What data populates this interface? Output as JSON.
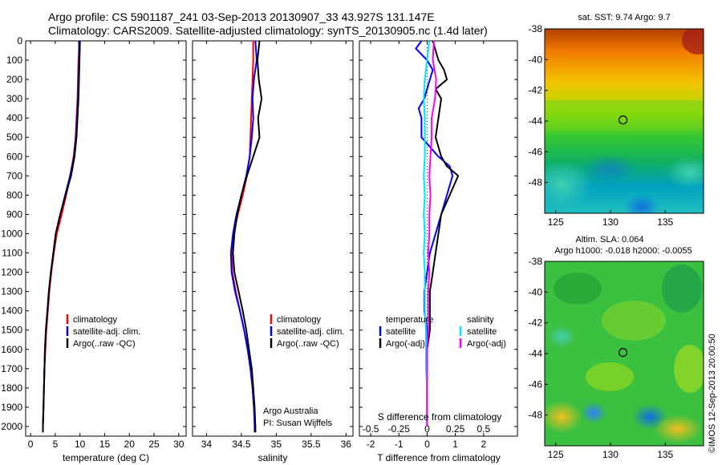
{
  "header": {
    "line1": "Argo profile: CS 5901187_241 03-Sep-2013 20130907_33 43.927S 131.147E",
    "line2": "Climatology: CARS2009. Satellite-adjusted climatology: synTS_20130905.nc (1.4d later)"
  },
  "side_label": "©IMOS 12-Sep-2013 20:00:50",
  "depth_ticks": [
    0,
    100,
    200,
    300,
    400,
    500,
    600,
    700,
    800,
    900,
    1000,
    1100,
    1200,
    1300,
    1400,
    1500,
    1600,
    1700,
    1800,
    1900,
    2000
  ],
  "colors": {
    "climatology": "#ff0000",
    "satellite": "#0000ff",
    "argo": "#000000",
    "satellite_s": "#00e5ff",
    "argo_s": "#ff00ff"
  },
  "chart_data": [
    {
      "type": "line",
      "panel": "temperature",
      "xlabel": "temperature (deg C)",
      "xlim": [
        -1,
        31.5
      ],
      "ylim": [
        2050,
        0
      ],
      "xticks": [
        0,
        5,
        10,
        15,
        20,
        25,
        30
      ],
      "legend": [
        "climatology",
        "satellite-adj. clim.",
        "Argo(..raw -QC)"
      ],
      "series": [
        {
          "name": "climatology",
          "depth": [
            0,
            100,
            200,
            300,
            400,
            500,
            600,
            700,
            800,
            900,
            1000,
            1100,
            1200,
            1300,
            1400,
            1500,
            1600,
            1700,
            1800,
            1900,
            2000,
            2030
          ],
          "values": [
            9.9,
            9.7,
            9.6,
            9.5,
            9.3,
            9.1,
            8.7,
            8.0,
            7.2,
            6.3,
            5.3,
            4.7,
            4.2,
            3.8,
            3.5,
            3.2,
            3.0,
            2.8,
            2.7,
            2.6,
            2.5,
            2.5
          ]
        },
        {
          "name": "satellite-adj. clim.",
          "depth": [
            0,
            100,
            200,
            300,
            400,
            500,
            600,
            700,
            800,
            900,
            1000,
            1100,
            1200,
            1300,
            1400,
            1500,
            1600,
            1700,
            1800,
            1900,
            2000,
            2030
          ],
          "values": [
            9.8,
            9.8,
            9.7,
            9.6,
            9.4,
            9.2,
            8.8,
            8.0,
            7.0,
            6.0,
            5.1,
            4.6,
            4.1,
            3.7,
            3.4,
            3.1,
            2.9,
            2.8,
            2.7,
            2.6,
            2.5,
            2.5
          ]
        },
        {
          "name": "Argo(..raw -QC)",
          "depth": [
            0,
            100,
            200,
            300,
            400,
            500,
            600,
            700,
            800,
            900,
            1000,
            1100,
            1200,
            1300,
            1400,
            1500,
            1600,
            1700,
            1800,
            1900,
            2000,
            2030
          ],
          "values": [
            10.0,
            9.9,
            9.8,
            9.7,
            9.5,
            9.3,
            8.9,
            8.2,
            7.1,
            6.0,
            5.1,
            4.6,
            4.1,
            3.7,
            3.4,
            3.1,
            2.9,
            2.8,
            2.7,
            2.6,
            2.5,
            2.5
          ]
        }
      ]
    },
    {
      "type": "line",
      "panel": "salinity",
      "xlabel": "salinity",
      "xlim": [
        33.8,
        36.1
      ],
      "ylim": [
        2050,
        0
      ],
      "xticks": [
        34,
        34.5,
        35,
        35.5,
        36
      ],
      "legend": [
        "climatology",
        "satellite-adj. clim.",
        "Argo(..raw -QC)"
      ],
      "annotation": [
        "Argo Australia",
        "PI: Susan Wijffels"
      ],
      "series": [
        {
          "name": "climatology",
          "depth": [
            0,
            100,
            200,
            300,
            400,
            500,
            600,
            700,
            800,
            900,
            1000,
            1100,
            1200,
            1300,
            1400,
            1500,
            1600,
            1700,
            1800,
            1900,
            2000,
            2030
          ],
          "values": [
            34.67,
            34.67,
            34.66,
            34.65,
            34.64,
            34.63,
            34.62,
            34.58,
            34.52,
            34.45,
            34.39,
            34.36,
            34.37,
            34.42,
            34.48,
            34.54,
            34.59,
            34.63,
            34.66,
            34.68,
            34.7,
            34.7
          ]
        },
        {
          "name": "satellite-adj. clim.",
          "depth": [
            0,
            100,
            200,
            300,
            400,
            500,
            600,
            700,
            800,
            900,
            1000,
            1100,
            1200,
            1300,
            1400,
            1500,
            1600,
            1700,
            1800,
            1900,
            2000,
            2030
          ],
          "values": [
            34.7,
            34.72,
            34.68,
            34.66,
            34.67,
            34.65,
            34.62,
            34.57,
            34.5,
            34.43,
            34.38,
            34.35,
            34.36,
            34.41,
            34.48,
            34.54,
            34.59,
            34.63,
            34.66,
            34.68,
            34.69,
            34.69
          ]
        },
        {
          "name": "Argo(..raw -QC)",
          "depth": [
            0,
            100,
            200,
            300,
            400,
            500,
            600,
            700,
            800,
            900,
            1000,
            1100,
            1200,
            1300,
            1400,
            1500,
            1600,
            1700,
            1800,
            1900,
            2000,
            2030
          ],
          "values": [
            34.76,
            34.73,
            34.75,
            34.79,
            34.74,
            34.76,
            34.67,
            34.58,
            34.5,
            34.44,
            34.4,
            34.38,
            34.4,
            34.46,
            34.52,
            34.57,
            34.61,
            34.65,
            34.67,
            34.69,
            34.7,
            34.7
          ]
        }
      ]
    },
    {
      "type": "line",
      "panel": "differences",
      "xlabel": "T difference from climatology",
      "xlabel_top": "S difference from climatology",
      "xlim": [
        -2.4,
        3.2
      ],
      "ylim": [
        2050,
        0
      ],
      "xticks": [
        -2,
        -1,
        0,
        1,
        2
      ],
      "xticks_top": [
        "-0.5",
        "-0.25",
        "0",
        "0.25",
        "0.5"
      ],
      "legend_left": [
        "temperature",
        "satellite",
        "Argo(-adj)"
      ],
      "legend_right": [
        "salinity",
        "satellite",
        "Argo(-adj)"
      ],
      "series": [
        {
          "name": "satellite",
          "variable": "temperature",
          "depth": [
            0,
            40,
            100,
            150,
            200,
            300,
            350,
            400,
            500,
            600,
            650,
            700,
            800,
            900,
            1000,
            1100,
            1200,
            1300,
            1400,
            1500,
            1600,
            1700,
            1800,
            1900,
            2000
          ],
          "values": [
            -0.2,
            -0.4,
            0.0,
            0.2,
            0.1,
            -0.1,
            -0.3,
            -0.2,
            -0.2,
            0.4,
            0.8,
            0.9,
            0.7,
            0.5,
            0.3,
            0.1,
            0.0,
            -0.1,
            -0.1,
            0.0,
            0.0,
            0.0,
            0.0,
            0.0,
            0.0
          ]
        },
        {
          "name": "Argo(-adj)",
          "variable": "temperature",
          "depth": [
            0,
            50,
            100,
            150,
            200,
            250,
            300,
            400,
            500,
            600,
            650,
            700,
            800,
            900,
            1000,
            1100,
            1200,
            1300,
            1400,
            1500,
            1600,
            1700,
            1800,
            1900,
            2000
          ],
          "values": [
            0.2,
            0.3,
            0.4,
            0.6,
            0.7,
            0.3,
            0.5,
            0.4,
            0.3,
            0.5,
            0.7,
            1.1,
            0.8,
            0.5,
            0.4,
            0.3,
            0.2,
            0.1,
            0.1,
            0.1,
            0.0,
            0.0,
            0.0,
            0.0,
            0.0
          ]
        },
        {
          "name": "satellite",
          "variable": "salinity",
          "depth": [
            0,
            100,
            200,
            300,
            400,
            500,
            600,
            700,
            800,
            900,
            1000,
            1100,
            1200,
            1300,
            1400,
            1500,
            1600,
            1700,
            1800,
            1900,
            2000
          ],
          "values": [
            0.02,
            0.0,
            -0.02,
            -0.03,
            -0.02,
            -0.02,
            -0.02,
            -0.03,
            -0.02,
            -0.03,
            -0.02,
            -0.03,
            -0.02,
            -0.02,
            -0.02,
            -0.01,
            -0.01,
            -0.01,
            0.0,
            0.0,
            0.0
          ]
        },
        {
          "name": "Argo(-adj)",
          "variable": "salinity",
          "depth": [
            0,
            100,
            200,
            300,
            400,
            500,
            600,
            700,
            800,
            900,
            1000,
            1100,
            1200,
            1300,
            1400,
            1500,
            1600,
            1700,
            1800,
            1900,
            2000
          ],
          "values": [
            0.06,
            0.05,
            0.08,
            0.07,
            0.04,
            0.04,
            0.03,
            0.02,
            0.03,
            0.02,
            0.02,
            0.01,
            0.02,
            0.01,
            0.01,
            0.01,
            0.0,
            0.0,
            0.0,
            0.0,
            0.0
          ]
        }
      ]
    },
    {
      "type": "heatmap",
      "panel": "sst-map",
      "title": "sat. SST: 9.74  Argo: 9.7",
      "xlim": [
        124,
        138.5
      ],
      "ylim": [
        -50,
        -38
      ],
      "xticks": [
        125,
        130,
        135
      ],
      "yticks": [
        -38,
        -40,
        -42,
        -44,
        -46,
        -48
      ],
      "marker": {
        "lon": 131.147,
        "lat": -43.927
      }
    },
    {
      "type": "heatmap",
      "panel": "sla-map",
      "title": "Altim. SLA: 0.064",
      "subtitle": "Argo h1000: -0.018  h2000: -0.0055",
      "xlim": [
        124,
        138.5
      ],
      "ylim": [
        -50,
        -38
      ],
      "xticks": [
        125,
        130,
        135
      ],
      "yticks": [
        -38,
        -40,
        -42,
        -44,
        -46,
        -48
      ],
      "marker": {
        "lon": 131.147,
        "lat": -43.927
      }
    }
  ]
}
